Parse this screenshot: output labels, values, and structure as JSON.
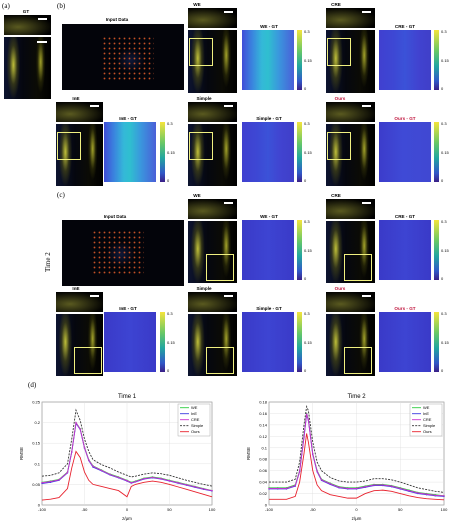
{
  "labels": {
    "a": "(a)",
    "b": "(b)",
    "c": "(c)",
    "d": "(d)",
    "gt": "GT",
    "input_data_b": "Input Data",
    "input_data_c": "Input Data",
    "time2_side": "Time 2"
  },
  "row_b": {
    "we": "WE",
    "we_gt": "WE - GT",
    "cre": "CRE",
    "cre_gt": "CRE - GT",
    "ine": "InE",
    "ine_gt": "InE - GT",
    "simple": "Simple",
    "simple_gt": "Simple - GT",
    "ours": "Ours",
    "ours_gt": "Ours - GT"
  },
  "row_c": {
    "we": "WE",
    "we_gt": "WE - GT",
    "cre": "CRE",
    "cre_gt": "CRE - GT",
    "ine": "InE",
    "ine_gt": "InE - GT",
    "simple": "Simple",
    "simple_gt": "Simple - GT",
    "ours": "Ours",
    "ours_gt": "Ours - GT"
  },
  "colorbar_ticks": [
    "0.3",
    "0.15",
    "0"
  ],
  "accent_red": "#c0143c",
  "chart_data": [
    {
      "type": "line",
      "title": "Time 1",
      "xlabel": "z/μm",
      "ylabel": "RMSE",
      "xlim": [
        -100,
        100
      ],
      "ylim": [
        0,
        0.25
      ],
      "xticks": [
        -100,
        -50,
        0,
        50,
        100
      ],
      "yticks": [
        0,
        0.05,
        0.1,
        0.15,
        0.2,
        0.25
      ],
      "ytick_labels": [
        "0",
        "0.05",
        "0.1",
        "0.15",
        "0.2",
        "0.25"
      ],
      "grid": true,
      "legend": "top-right",
      "x": [
        -100,
        -90,
        -80,
        -70,
        -65,
        -60,
        -55,
        -50,
        -45,
        -40,
        -30,
        -20,
        -10,
        0,
        5,
        10,
        20,
        30,
        40,
        50,
        60,
        70,
        80,
        90,
        100
      ],
      "series": [
        {
          "name": "WE",
          "color": "#2ecc40",
          "values": [
            0.055,
            0.058,
            0.062,
            0.08,
            0.13,
            0.2,
            0.185,
            0.14,
            0.11,
            0.095,
            0.085,
            0.075,
            0.068,
            0.06,
            0.055,
            0.058,
            0.065,
            0.068,
            0.065,
            0.06,
            0.055,
            0.05,
            0.045,
            0.04,
            0.035
          ]
        },
        {
          "name": "InE",
          "color": "#3b3be0",
          "values": [
            0.052,
            0.055,
            0.06,
            0.078,
            0.128,
            0.198,
            0.183,
            0.138,
            0.108,
            0.092,
            0.083,
            0.073,
            0.066,
            0.058,
            0.053,
            0.056,
            0.063,
            0.066,
            0.063,
            0.058,
            0.053,
            0.048,
            0.043,
            0.038,
            0.034
          ]
        },
        {
          "name": "CRE",
          "color": "#cc33cc",
          "values": [
            0.054,
            0.057,
            0.061,
            0.079,
            0.129,
            0.2,
            0.184,
            0.139,
            0.109,
            0.094,
            0.084,
            0.074,
            0.067,
            0.059,
            0.054,
            0.057,
            0.064,
            0.067,
            0.064,
            0.059,
            0.054,
            0.049,
            0.044,
            0.039,
            0.035
          ]
        },
        {
          "name": "Simple",
          "color": "#333333",
          "values": [
            0.07,
            0.072,
            0.078,
            0.1,
            0.16,
            0.23,
            0.205,
            0.16,
            0.13,
            0.11,
            0.098,
            0.09,
            0.08,
            0.072,
            0.068,
            0.07,
            0.075,
            0.078,
            0.076,
            0.072,
            0.066,
            0.06,
            0.055,
            0.05,
            0.046
          ]
        },
        {
          "name": "Ours",
          "color": "#e8222e",
          "values": [
            0.012,
            0.014,
            0.018,
            0.04,
            0.09,
            0.13,
            0.115,
            0.08,
            0.06,
            0.05,
            0.045,
            0.04,
            0.035,
            0.02,
            0.045,
            0.05,
            0.055,
            0.058,
            0.055,
            0.05,
            0.044,
            0.038,
            0.032,
            0.026,
            0.02
          ]
        }
      ]
    },
    {
      "type": "line",
      "title": "Time 2",
      "xlabel": "z/μm",
      "ylabel": "RMSE",
      "xlim": [
        -100,
        100
      ],
      "ylim": [
        0,
        0.18
      ],
      "xticks": [
        -100,
        -50,
        0,
        50,
        100
      ],
      "yticks": [
        0,
        0.02,
        0.04,
        0.06,
        0.08,
        0.1,
        0.12,
        0.14,
        0.16,
        0.18
      ],
      "ytick_labels": [
        "0",
        "0.02",
        "0.04",
        "0.06",
        "0.08",
        "0.1",
        "0.12",
        "0.14",
        "0.16",
        "0.18"
      ],
      "grid": true,
      "legend": "top-right",
      "x": [
        -100,
        -90,
        -80,
        -70,
        -65,
        -60,
        -57,
        -55,
        -50,
        -45,
        -40,
        -30,
        -20,
        -10,
        0,
        10,
        20,
        30,
        40,
        50,
        60,
        70,
        80,
        90,
        100
      ],
      "series": [
        {
          "name": "WE",
          "color": "#2ecc40",
          "values": [
            0.03,
            0.03,
            0.03,
            0.035,
            0.06,
            0.12,
            0.16,
            0.15,
            0.09,
            0.06,
            0.045,
            0.038,
            0.032,
            0.03,
            0.03,
            0.033,
            0.036,
            0.036,
            0.034,
            0.03,
            0.026,
            0.022,
            0.02,
            0.018,
            0.016
          ]
        },
        {
          "name": "InE",
          "color": "#3b3be0",
          "values": [
            0.028,
            0.028,
            0.028,
            0.033,
            0.058,
            0.118,
            0.158,
            0.148,
            0.088,
            0.058,
            0.043,
            0.036,
            0.03,
            0.028,
            0.028,
            0.031,
            0.034,
            0.034,
            0.032,
            0.028,
            0.024,
            0.02,
            0.018,
            0.016,
            0.015
          ]
        },
        {
          "name": "CRE",
          "color": "#cc33cc",
          "values": [
            0.029,
            0.029,
            0.029,
            0.034,
            0.059,
            0.119,
            0.159,
            0.149,
            0.089,
            0.059,
            0.044,
            0.037,
            0.031,
            0.029,
            0.029,
            0.032,
            0.035,
            0.035,
            0.033,
            0.029,
            0.025,
            0.021,
            0.019,
            0.017,
            0.016
          ]
        },
        {
          "name": "Simple",
          "color": "#333333",
          "values": [
            0.04,
            0.04,
            0.04,
            0.045,
            0.075,
            0.14,
            0.172,
            0.165,
            0.11,
            0.075,
            0.06,
            0.048,
            0.042,
            0.04,
            0.04,
            0.042,
            0.046,
            0.046,
            0.044,
            0.04,
            0.035,
            0.03,
            0.027,
            0.024,
            0.022
          ]
        },
        {
          "name": "Ours",
          "color": "#e8222e",
          "values": [
            0.01,
            0.01,
            0.01,
            0.015,
            0.04,
            0.09,
            0.125,
            0.11,
            0.06,
            0.035,
            0.025,
            0.018,
            0.015,
            0.012,
            0.012,
            0.02,
            0.025,
            0.026,
            0.024,
            0.02,
            0.016,
            0.013,
            0.011,
            0.01,
            0.009
          ]
        }
      ]
    }
  ]
}
